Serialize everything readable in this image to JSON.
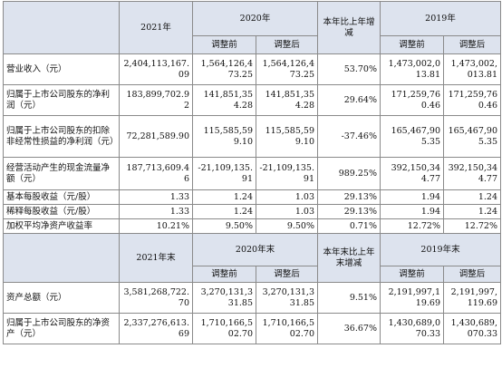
{
  "header1": {
    "y2021": "2021年",
    "y2020": "2020年",
    "yoy": "本年比上年增减",
    "y2019": "2019年",
    "before": "调整前",
    "after": "调整后"
  },
  "rows1": [
    {
      "label": "营业收入（元）",
      "v2021": "2,404,113,167.09",
      "v2020a": "1,564,126,473.25",
      "v2020b": "1,564,126,473.25",
      "yoy": "53.70%",
      "v2019a": "1,473,002,013.81",
      "v2019b": "1,473,002,013.81"
    },
    {
      "label": "归属于上市公司股东的净利润（元）",
      "v2021": "183,899,702.92",
      "v2020a": "141,851,354.28",
      "v2020b": "141,851,354.28",
      "yoy": "29.64%",
      "v2019a": "171,259,760.46",
      "v2019b": "171,259,760.46"
    },
    {
      "label": "归属于上市公司股东的扣除非经常性损益的净利润（元）",
      "v2021": "72,281,589.90",
      "v2020a": "115,585,599.10",
      "v2020b": "115,585,599.10",
      "yoy": "-37.46%",
      "v2019a": "165,467,905.35",
      "v2019b": "165,467,905.35"
    },
    {
      "label": "经营活动产生的现金流量净额（元）",
      "v2021": "187,713,609.46",
      "v2020a": "-21,109,135.91",
      "v2020b": "-21,109,135.91",
      "yoy": "989.25%",
      "v2019a": "392,150,344.77",
      "v2019b": "392,150,344.77"
    },
    {
      "label": "基本每股收益（元/股）",
      "v2021": "1.33",
      "v2020a": "1.24",
      "v2020b": "1.03",
      "yoy": "29.13%",
      "v2019a": "1.94",
      "v2019b": "1.24"
    },
    {
      "label": "稀释每股收益（元/股）",
      "v2021": "1.33",
      "v2020a": "1.24",
      "v2020b": "1.03",
      "yoy": "29.13%",
      "v2019a": "1.94",
      "v2019b": "1.24"
    },
    {
      "label": "加权平均净资产收益率",
      "v2021": "10.21%",
      "v2020a": "9.50%",
      "v2020b": "9.50%",
      "yoy": "0.71%",
      "v2019a": "12.72%",
      "v2019b": "12.72%"
    }
  ],
  "header2": {
    "y2021": "2021年末",
    "y2020": "2020年末",
    "yoy": "本年末比上年末增减",
    "y2019": "2019年末",
    "before": "调整前",
    "after": "调整后"
  },
  "rows2": [
    {
      "label": "资产总额（元）",
      "v2021": "3,581,268,722.70",
      "v2020a": "3,270,131,331.85",
      "v2020b": "3,270,131,331.85",
      "yoy": "9.51%",
      "v2019a": "2,191,997,119.69",
      "v2019b": "2,191,997,119.69"
    },
    {
      "label": "归属于上市公司股东的净资产（元）",
      "v2021": "2,337,276,613.69",
      "v2020a": "1,710,166,502.70",
      "v2020b": "1,710,166,502.70",
      "yoy": "36.67%",
      "v2019a": "1,430,689,070.33",
      "v2019b": "1,430,689,070.33"
    }
  ]
}
